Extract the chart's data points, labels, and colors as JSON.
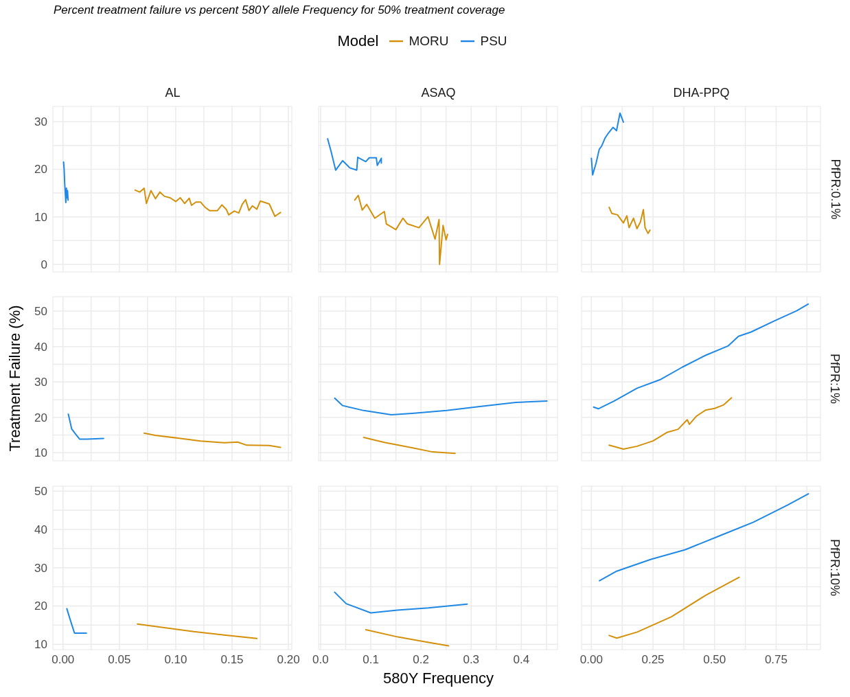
{
  "chart_data": [
    {
      "type": "line",
      "subtitle": "Percent treatment failure vs percent 580Y allele Frequency for 50% treatment coverage",
      "title": "AL",
      "legend_title": "Model",
      "legend": "top",
      "grid": true,
      "tick_labels": "y",
      "xlim": [
        -0.009,
        0.203
      ],
      "xticks": [
        {
          "value": 0,
          "label": null
        },
        {
          "value": 0.025,
          "label": null
        },
        {
          "value": 0.05,
          "label": null
        },
        {
          "value": 0.075,
          "label": null
        },
        {
          "value": 0.1,
          "label": null
        },
        {
          "value": 0.125,
          "label": null
        },
        {
          "value": 0.15,
          "label": null
        },
        {
          "value": 0.175,
          "label": null
        },
        {
          "value": 0.2,
          "label": null
        }
      ],
      "ylim": [
        -1.6,
        33.2
      ],
      "yticks": [
        0,
        {
          "value": 5,
          "label": null
        },
        10,
        {
          "value": 15,
          "label": null
        },
        20,
        {
          "value": 25,
          "label": null
        },
        30
      ],
      "series": [
        {
          "name": "MORU",
          "color": "#d4900a",
          "x": [
            0.064,
            0.068,
            0.072,
            0.074,
            0.078,
            0.082,
            0.086,
            0.09,
            0.095,
            0.1,
            0.104,
            0.108,
            0.112,
            0.114,
            0.118,
            0.122,
            0.126,
            0.13,
            0.137,
            0.141,
            0.145,
            0.147,
            0.152,
            0.156,
            0.159,
            0.162,
            0.165,
            0.168,
            0.172,
            0.175,
            0.183,
            0.188,
            0.193
          ],
          "values": [
            15.6,
            15.2,
            16,
            12.8,
            15.5,
            13.8,
            15.2,
            14.3,
            14,
            13.2,
            14,
            12.8,
            13.9,
            12.4,
            13.1,
            13.1,
            12,
            11.3,
            11.3,
            12.5,
            11.5,
            10.4,
            11.2,
            10.8,
            12.6,
            13.6,
            11.3,
            12.3,
            11.6,
            13.3,
            12.7,
            10.1,
            10.9
          ]
        },
        {
          "name": "PSU",
          "color": "#1f88e5",
          "x": [
            0.0005,
            0.001,
            0.0015,
            0.002,
            0.0025,
            0.003,
            0.0035,
            0.004,
            0.0045
          ],
          "values": [
            21.5,
            20,
            17,
            15,
            13,
            16,
            14,
            15.5,
            13.5
          ]
        }
      ]
    },
    {
      "type": "line",
      "title": "ASAQ",
      "grid": true,
      "tick_labels": false,
      "xlim": [
        -0.004,
        0.472
      ],
      "xticks": [
        {
          "value": 0,
          "label": null
        },
        {
          "value": 0.05,
          "label": null
        },
        {
          "value": 0.1,
          "label": null
        },
        {
          "value": 0.15,
          "label": null
        },
        {
          "value": 0.2,
          "label": null
        },
        {
          "value": 0.25,
          "label": null
        },
        {
          "value": 0.3,
          "label": null
        },
        {
          "value": 0.35,
          "label": null
        },
        {
          "value": 0.4,
          "label": null
        },
        {
          "value": 0.45,
          "label": null
        }
      ],
      "ylim": [
        -1.6,
        33.2
      ],
      "yticks": [
        {
          "value": 0,
          "label": null
        },
        {
          "value": 5,
          "label": null
        },
        {
          "value": 10,
          "label": null
        },
        {
          "value": 15,
          "label": null
        },
        {
          "value": 20,
          "label": null
        },
        {
          "value": 25,
          "label": null
        },
        {
          "value": 30,
          "label": null
        }
      ],
      "series": [
        {
          "color": "#d4900a",
          "x": [
            0.068,
            0.075,
            0.083,
            0.092,
            0.108,
            0.127,
            0.131,
            0.15,
            0.164,
            0.173,
            0.196,
            0.214,
            0.228,
            0.236,
            0.237,
            0.244,
            0.25,
            0.253
          ],
          "values": [
            13.5,
            14.5,
            11.4,
            12.6,
            9.7,
            11.1,
            8.5,
            7.3,
            9.7,
            8.5,
            7.7,
            10,
            5.3,
            9.4,
            0,
            8.2,
            5.1,
            6.3
          ]
        },
        {
          "color": "#1f88e5",
          "x": [
            0.014,
            0.021,
            0.03,
            0.044,
            0.058,
            0.072,
            0.074,
            0.09,
            0.097,
            0.111,
            0.113,
            0.121,
            0.121
          ],
          "values": [
            26.4,
            23.7,
            19.8,
            21.8,
            20.3,
            19.8,
            22.5,
            21.6,
            22.4,
            22.4,
            20.8,
            22.3,
            21.3
          ]
        }
      ]
    },
    {
      "type": "line",
      "title": "DHA-PPQ",
      "annotations": [
        "PfPR:0.1%"
      ],
      "grid": true,
      "tick_labels": false,
      "xlim": [
        -0.04,
        0.93
      ],
      "xticks": [
        {
          "value": 0,
          "label": null
        },
        {
          "value": 0.125,
          "label": null
        },
        {
          "value": 0.25,
          "label": null
        },
        {
          "value": 0.375,
          "label": null
        },
        {
          "value": 0.5,
          "label": null
        },
        {
          "value": 0.625,
          "label": null
        },
        {
          "value": 0.75,
          "label": null
        },
        {
          "value": 0.875,
          "label": null
        }
      ],
      "ylim": [
        -1.6,
        33.2
      ],
      "yticks": [
        {
          "value": 0,
          "label": null
        },
        {
          "value": 5,
          "label": null
        },
        {
          "value": 10,
          "label": null
        },
        {
          "value": 15,
          "label": null
        },
        {
          "value": 20,
          "label": null
        },
        {
          "value": 25,
          "label": null
        },
        {
          "value": 30,
          "label": null
        }
      ],
      "series": [
        {
          "color": "#d4900a",
          "x": [
            0.072,
            0.083,
            0.106,
            0.13,
            0.144,
            0.153,
            0.171,
            0.185,
            0.199,
            0.211,
            0.218,
            0.23,
            0.238
          ],
          "values": [
            12,
            10.7,
            10.4,
            8.7,
            10.2,
            7.7,
            9.7,
            7.5,
            8.9,
            11.5,
            7.7,
            6.5,
            7.2
          ]
        },
        {
          "color": "#1f88e5",
          "x": [
            0,
            0.005,
            0.019,
            0.032,
            0.042,
            0.056,
            0.069,
            0.088,
            0.102,
            0.116,
            0.13
          ],
          "values": [
            22.3,
            18.8,
            21.3,
            24.2,
            24.9,
            26.6,
            27.6,
            28.8,
            28.1,
            31.8,
            29.9
          ]
        }
      ]
    },
    {
      "type": "line",
      "ylabel": "Treatment Failure (%)",
      "grid": true,
      "tick_labels": "y",
      "xlim": [
        -0.009,
        0.203
      ],
      "xticks": [
        {
          "value": 0,
          "label": null
        },
        {
          "value": 0.025,
          "label": null
        },
        {
          "value": 0.05,
          "label": null
        },
        {
          "value": 0.075,
          "label": null
        },
        {
          "value": 0.1,
          "label": null
        },
        {
          "value": 0.125,
          "label": null
        },
        {
          "value": 0.15,
          "label": null
        },
        {
          "value": 0.175,
          "label": null
        },
        {
          "value": 0.2,
          "label": null
        }
      ],
      "ylim": [
        7.7,
        54.1
      ],
      "yticks": [
        10,
        {
          "value": 15,
          "label": null
        },
        20,
        {
          "value": 25,
          "label": null
        },
        30,
        {
          "value": 35,
          "label": null
        },
        40,
        {
          "value": 45,
          "label": null
        },
        50
      ],
      "series": [
        {
          "color": "#d4900a",
          "x": [
            0.072,
            0.082,
            0.102,
            0.122,
            0.143,
            0.155,
            0.163,
            0.183,
            0.193
          ],
          "values": [
            15.5,
            14.9,
            14.1,
            13.3,
            12.8,
            13,
            12.1,
            12,
            11.5
          ]
        },
        {
          "color": "#1f88e5",
          "x": [
            0.0047,
            0.0077,
            0.0108,
            0.0148,
            0.021,
            0.036
          ],
          "values": [
            20.9,
            16.7,
            15.4,
            13.8,
            13.8,
            14
          ]
        }
      ]
    },
    {
      "type": "line",
      "grid": true,
      "tick_labels": false,
      "xlim": [
        -0.004,
        0.472
      ],
      "xticks": [
        {
          "value": 0,
          "label": null
        },
        {
          "value": 0.05,
          "label": null
        },
        {
          "value": 0.1,
          "label": null
        },
        {
          "value": 0.15,
          "label": null
        },
        {
          "value": 0.2,
          "label": null
        },
        {
          "value": 0.25,
          "label": null
        },
        {
          "value": 0.3,
          "label": null
        },
        {
          "value": 0.35,
          "label": null
        },
        {
          "value": 0.4,
          "label": null
        },
        {
          "value": 0.45,
          "label": null
        }
      ],
      "ylim": [
        7.7,
        54.1
      ],
      "yticks": [
        {
          "value": 10,
          "label": null
        },
        {
          "value": 15,
          "label": null
        },
        {
          "value": 20,
          "label": null
        },
        {
          "value": 25,
          "label": null
        },
        {
          "value": 30,
          "label": null
        },
        {
          "value": 35,
          "label": null
        },
        {
          "value": 40,
          "label": null
        },
        {
          "value": 45,
          "label": null
        },
        {
          "value": 50,
          "label": null
        }
      ],
      "series": [
        {
          "color": "#d4900a",
          "x": [
            0.086,
            0.127,
            0.182,
            0.223,
            0.268
          ],
          "values": [
            14.3,
            12.9,
            11.4,
            10.2,
            9.8
          ]
        },
        {
          "color": "#1f88e5",
          "x": [
            0.028,
            0.044,
            0.086,
            0.141,
            0.182,
            0.251,
            0.32,
            0.389,
            0.451
          ],
          "values": [
            25.4,
            23.3,
            21.9,
            20.7,
            21.1,
            21.9,
            23.1,
            24.2,
            24.6
          ]
        }
      ]
    },
    {
      "type": "line",
      "annotations": [
        "PfPR:1%"
      ],
      "grid": true,
      "tick_labels": false,
      "xlim": [
        -0.04,
        0.93
      ],
      "xticks": [
        {
          "value": 0,
          "label": null
        },
        {
          "value": 0.125,
          "label": null
        },
        {
          "value": 0.25,
          "label": null
        },
        {
          "value": 0.375,
          "label": null
        },
        {
          "value": 0.5,
          "label": null
        },
        {
          "value": 0.625,
          "label": null
        },
        {
          "value": 0.75,
          "label": null
        },
        {
          "value": 0.875,
          "label": null
        }
      ],
      "ylim": [
        7.7,
        54.1
      ],
      "yticks": [
        {
          "value": 10,
          "label": null
        },
        {
          "value": 15,
          "label": null
        },
        {
          "value": 20,
          "label": null
        },
        {
          "value": 25,
          "label": null
        },
        {
          "value": 30,
          "label": null
        },
        {
          "value": 35,
          "label": null
        },
        {
          "value": 40,
          "label": null
        },
        {
          "value": 45,
          "label": null
        },
        {
          "value": 50,
          "label": null
        }
      ],
      "series": [
        {
          "color": "#d4900a",
          "x": [
            0.072,
            0.13,
            0.185,
            0.25,
            0.306,
            0.352,
            0.389,
            0.398,
            0.426,
            0.463,
            0.5,
            0.537,
            0.569
          ],
          "values": [
            12.1,
            11,
            11.8,
            13.3,
            15.7,
            16.6,
            19.3,
            18,
            20.3,
            22,
            22.5,
            23.5,
            25.5
          ]
        },
        {
          "color": "#1f88e5",
          "x": [
            0.009,
            0.028,
            0.093,
            0.185,
            0.278,
            0.37,
            0.463,
            0.556,
            0.597,
            0.648,
            0.741,
            0.833,
            0.88
          ],
          "values": [
            22.9,
            22.4,
            24.6,
            28.2,
            30.6,
            34.2,
            37.5,
            40.2,
            42.9,
            44.1,
            47.2,
            50.1,
            52
          ]
        }
      ]
    },
    {
      "type": "line",
      "grid": true,
      "xlim": [
        -0.009,
        0.203
      ],
      "xticks": [
        {
          "value": 0,
          "label": "0.00"
        },
        {
          "value": 0.025,
          "label": null
        },
        {
          "value": 0.05,
          "label": "0.05"
        },
        {
          "value": 0.075,
          "label": null
        },
        {
          "value": 0.1,
          "label": "0.10"
        },
        {
          "value": 0.125,
          "label": null
        },
        {
          "value": 0.15,
          "label": "0.15"
        },
        {
          "value": 0.175,
          "label": null
        },
        {
          "value": 0.2,
          "label": "0.20"
        }
      ],
      "ylim": [
        8.6,
        51.3
      ],
      "yticks": [
        10,
        {
          "value": 15,
          "label": null
        },
        20,
        {
          "value": 25,
          "label": null
        },
        30,
        {
          "value": 35,
          "label": null
        },
        40,
        {
          "value": 45,
          "label": null
        },
        50
      ],
      "series": [
        {
          "color": "#d4900a",
          "x": [
            0.066,
            0.116,
            0.143,
            0.172
          ],
          "values": [
            15.3,
            13.3,
            12.4,
            11.5
          ]
        },
        {
          "color": "#1f88e5",
          "x": [
            0.0034,
            0.0061,
            0.0102,
            0.0207
          ],
          "values": [
            19.3,
            16.7,
            12.9,
            12.9
          ]
        }
      ]
    },
    {
      "type": "line",
      "xlabel": "580Y Frequency",
      "grid": true,
      "tick_labels": "x",
      "xlim": [
        -0.004,
        0.472
      ],
      "xticks": [
        {
          "value": 0,
          "label": "0.0"
        },
        {
          "value": 0.05,
          "label": null
        },
        0.1,
        {
          "value": 0.15,
          "label": null
        },
        0.2,
        {
          "value": 0.25,
          "label": null
        },
        0.3,
        {
          "value": 0.35,
          "label": null
        },
        0.4,
        {
          "value": 0.45,
          "label": null
        }
      ],
      "ylim": [
        8.6,
        51.3
      ],
      "yticks": [
        {
          "value": 10,
          "label": null
        },
        {
          "value": 15,
          "label": null
        },
        {
          "value": 20,
          "label": null
        },
        {
          "value": 25,
          "label": null
        },
        {
          "value": 30,
          "label": null
        },
        {
          "value": 35,
          "label": null
        },
        {
          "value": 40,
          "label": null
        },
        {
          "value": 45,
          "label": null
        },
        {
          "value": 50,
          "label": null
        }
      ],
      "series": [
        {
          "color": "#d4900a",
          "x": [
            0.09,
            0.154,
            0.215,
            0.255
          ],
          "values": [
            13.8,
            11.9,
            10.5,
            9.6
          ]
        },
        {
          "color": "#1f88e5",
          "x": [
            0.028,
            0.051,
            0.1,
            0.153,
            0.215,
            0.292
          ],
          "values": [
            23.6,
            20.6,
            18.2,
            18.9,
            19.5,
            20.5
          ]
        }
      ]
    },
    {
      "type": "line",
      "annotations": [
        "PfPR:10%"
      ],
      "grid": true,
      "tick_labels": "x",
      "xlim": [
        -0.04,
        0.93
      ],
      "xticks": [
        {
          "value": 0,
          "label": "0.00"
        },
        {
          "value": 0.125,
          "label": null
        },
        0.25,
        {
          "value": 0.375,
          "label": null
        },
        {
          "value": 0.5,
          "label": "0.50"
        },
        {
          "value": 0.625,
          "label": null
        },
        0.75,
        {
          "value": 0.875,
          "label": null
        }
      ],
      "ylim": [
        8.6,
        51.3
      ],
      "yticks": [
        {
          "value": 10,
          "label": null
        },
        {
          "value": 15,
          "label": null
        },
        {
          "value": 20,
          "label": null
        },
        {
          "value": 25,
          "label": null
        },
        {
          "value": 30,
          "label": null
        },
        {
          "value": 35,
          "label": null
        },
        {
          "value": 40,
          "label": null
        },
        {
          "value": 45,
          "label": null
        },
        {
          "value": 50,
          "label": null
        }
      ],
      "series": [
        {
          "color": "#d4900a",
          "x": [
            0.072,
            0.103,
            0.186,
            0.325,
            0.464,
            0.6
          ],
          "values": [
            12.3,
            11.6,
            13.2,
            17.2,
            22.8,
            27.5
          ]
        },
        {
          "color": "#1f88e5",
          "x": [
            0.033,
            0.103,
            0.242,
            0.381,
            0.519,
            0.658,
            0.797,
            0.881
          ],
          "values": [
            26.6,
            29.1,
            32.2,
            34.7,
            38.3,
            41.9,
            46.4,
            49.3
          ]
        }
      ]
    }
  ]
}
